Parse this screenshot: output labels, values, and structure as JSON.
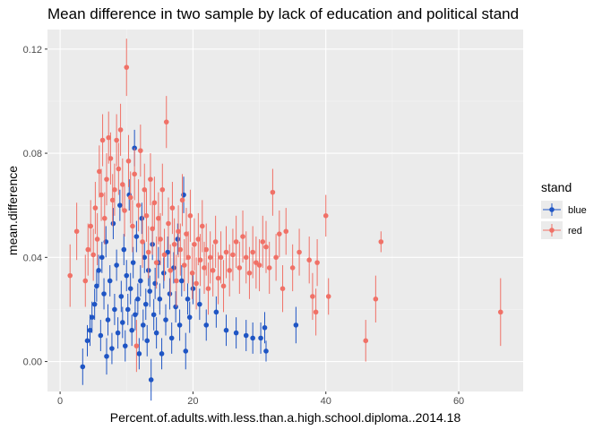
{
  "chart_data": {
    "type": "scatter",
    "title": "Mean difference in two sample by lack of education and political stand",
    "xlabel": "Percent.of.adults.with.less.than.a.high.school.diploma..2014.18",
    "ylabel": "mean.difference",
    "xlim": [
      -1.9,
      69.7
    ],
    "ylim": [
      -0.0115,
      0.1275
    ],
    "x_ticks": [
      0,
      20,
      40,
      60
    ],
    "x_tick_labels": [
      "0",
      "20",
      "40",
      "60"
    ],
    "y_ticks": [
      0.0,
      0.04,
      0.08,
      0.12
    ],
    "y_tick_labels": [
      "0.00",
      "0.04",
      "0.08",
      "0.12"
    ],
    "grid": true,
    "error_bars": true,
    "legend": {
      "title": "stand",
      "position": "right",
      "entries": [
        "blue",
        "red"
      ]
    },
    "colors": {
      "blue": "#1f55c4",
      "red": "#f07167"
    },
    "series": [
      {
        "name": "blue",
        "color": "#1f55c4",
        "points": [
          {
            "x": 3.4,
            "y": -0.002,
            "err": 0.007
          },
          {
            "x": 4.1,
            "y": 0.008,
            "err": 0.006
          },
          {
            "x": 4.5,
            "y": 0.012,
            "err": 0.006
          },
          {
            "x": 4.8,
            "y": 0.017,
            "err": 0.006
          },
          {
            "x": 5.2,
            "y": 0.022,
            "err": 0.006
          },
          {
            "x": 5.5,
            "y": 0.029,
            "err": 0.006
          },
          {
            "x": 5.8,
            "y": 0.035,
            "err": 0.006
          },
          {
            "x": 6.1,
            "y": 0.01,
            "err": 0.006
          },
          {
            "x": 6.3,
            "y": 0.04,
            "err": 0.006
          },
          {
            "x": 6.6,
            "y": 0.026,
            "err": 0.006
          },
          {
            "x": 6.9,
            "y": 0.046,
            "err": 0.006
          },
          {
            "x": 7.0,
            "y": 0.002,
            "err": 0.007
          },
          {
            "x": 7.2,
            "y": 0.016,
            "err": 0.006
          },
          {
            "x": 7.5,
            "y": 0.031,
            "err": 0.006
          },
          {
            "x": 7.8,
            "y": 0.005,
            "err": 0.006
          },
          {
            "x": 8.0,
            "y": 0.053,
            "err": 0.006
          },
          {
            "x": 8.2,
            "y": 0.02,
            "err": 0.006
          },
          {
            "x": 8.5,
            "y": 0.037,
            "err": 0.006
          },
          {
            "x": 8.7,
            "y": 0.011,
            "err": 0.006
          },
          {
            "x": 9.0,
            "y": 0.06,
            "err": 0.006
          },
          {
            "x": 9.2,
            "y": 0.025,
            "err": 0.006
          },
          {
            "x": 9.4,
            "y": 0.015,
            "err": 0.006
          },
          {
            "x": 9.6,
            "y": 0.043,
            "err": 0.006
          },
          {
            "x": 9.8,
            "y": 0.006,
            "err": 0.006
          },
          {
            "x": 10.0,
            "y": 0.033,
            "err": 0.006
          },
          {
            "x": 10.2,
            "y": 0.02,
            "err": 0.006
          },
          {
            "x": 10.4,
            "y": 0.064,
            "err": 0.006
          },
          {
            "x": 10.6,
            "y": 0.028,
            "err": 0.006
          },
          {
            "x": 10.8,
            "y": 0.012,
            "err": 0.006
          },
          {
            "x": 11.0,
            "y": 0.038,
            "err": 0.006
          },
          {
            "x": 11.2,
            "y": 0.082,
            "err": 0.007
          },
          {
            "x": 11.3,
            "y": 0.018,
            "err": 0.006
          },
          {
            "x": 11.5,
            "y": 0.048,
            "err": 0.006
          },
          {
            "x": 11.7,
            "y": 0.024,
            "err": 0.006
          },
          {
            "x": 11.9,
            "y": 0.003,
            "err": 0.006
          },
          {
            "x": 12.1,
            "y": 0.031,
            "err": 0.006
          },
          {
            "x": 12.3,
            "y": 0.055,
            "err": 0.006
          },
          {
            "x": 12.5,
            "y": 0.014,
            "err": 0.006
          },
          {
            "x": 12.7,
            "y": 0.04,
            "err": 0.006
          },
          {
            "x": 12.9,
            "y": 0.022,
            "err": 0.006
          },
          {
            "x": 13.1,
            "y": 0.008,
            "err": 0.006
          },
          {
            "x": 13.3,
            "y": 0.035,
            "err": 0.006
          },
          {
            "x": 13.5,
            "y": 0.027,
            "err": 0.006
          },
          {
            "x": 13.7,
            "y": -0.007,
            "err": 0.008
          },
          {
            "x": 13.9,
            "y": 0.045,
            "err": 0.006
          },
          {
            "x": 14.1,
            "y": 0.018,
            "err": 0.006
          },
          {
            "x": 14.3,
            "y": 0.03,
            "err": 0.006
          },
          {
            "x": 14.5,
            "y": 0.011,
            "err": 0.006
          },
          {
            "x": 14.8,
            "y": 0.038,
            "err": 0.006
          },
          {
            "x": 15.0,
            "y": 0.024,
            "err": 0.006
          },
          {
            "x": 15.3,
            "y": 0.003,
            "err": 0.006
          },
          {
            "x": 15.6,
            "y": 0.034,
            "err": 0.006
          },
          {
            "x": 15.9,
            "y": 0.016,
            "err": 0.006
          },
          {
            "x": 16.2,
            "y": 0.042,
            "err": 0.006
          },
          {
            "x": 16.5,
            "y": 0.026,
            "err": 0.006
          },
          {
            "x": 16.8,
            "y": 0.009,
            "err": 0.006
          },
          {
            "x": 17.1,
            "y": 0.036,
            "err": 0.006
          },
          {
            "x": 17.4,
            "y": 0.021,
            "err": 0.006
          },
          {
            "x": 17.7,
            "y": 0.047,
            "err": 0.006
          },
          {
            "x": 18.0,
            "y": 0.014,
            "err": 0.006
          },
          {
            "x": 18.3,
            "y": 0.031,
            "err": 0.006
          },
          {
            "x": 18.6,
            "y": 0.064,
            "err": 0.007
          },
          {
            "x": 18.9,
            "y": 0.004,
            "err": 0.007
          },
          {
            "x": 19.2,
            "y": 0.024,
            "err": 0.006
          },
          {
            "x": 19.5,
            "y": 0.017,
            "err": 0.006
          },
          {
            "x": 20.0,
            "y": 0.028,
            "err": 0.006
          },
          {
            "x": 21.0,
            "y": 0.022,
            "err": 0.006
          },
          {
            "x": 22.0,
            "y": 0.014,
            "err": 0.006
          },
          {
            "x": 23.5,
            "y": 0.019,
            "err": 0.006
          },
          {
            "x": 25.0,
            "y": 0.012,
            "err": 0.006
          },
          {
            "x": 26.5,
            "y": 0.011,
            "err": 0.006
          },
          {
            "x": 28.0,
            "y": 0.01,
            "err": 0.006
          },
          {
            "x": 29.0,
            "y": 0.009,
            "err": 0.006
          },
          {
            "x": 30.2,
            "y": 0.009,
            "err": 0.006
          },
          {
            "x": 30.8,
            "y": 0.013,
            "err": 0.006
          },
          {
            "x": 31.0,
            "y": 0.004,
            "err": 0.004
          },
          {
            "x": 35.5,
            "y": 0.014,
            "err": 0.007
          }
        ]
      },
      {
        "name": "red",
        "color": "#f07167",
        "points": [
          {
            "x": 1.5,
            "y": 0.033,
            "err": 0.012
          },
          {
            "x": 2.5,
            "y": 0.05,
            "err": 0.011
          },
          {
            "x": 3.8,
            "y": 0.031,
            "err": 0.01
          },
          {
            "x": 4.2,
            "y": 0.043,
            "err": 0.01
          },
          {
            "x": 4.6,
            "y": 0.052,
            "err": 0.01
          },
          {
            "x": 5.0,
            "y": 0.041,
            "err": 0.01
          },
          {
            "x": 5.3,
            "y": 0.059,
            "err": 0.01
          },
          {
            "x": 5.6,
            "y": 0.047,
            "err": 0.01
          },
          {
            "x": 5.9,
            "y": 0.073,
            "err": 0.01
          },
          {
            "x": 6.2,
            "y": 0.064,
            "err": 0.01
          },
          {
            "x": 6.4,
            "y": 0.085,
            "err": 0.01
          },
          {
            "x": 6.7,
            "y": 0.055,
            "err": 0.01
          },
          {
            "x": 7.0,
            "y": 0.07,
            "err": 0.01
          },
          {
            "x": 7.3,
            "y": 0.086,
            "err": 0.01
          },
          {
            "x": 7.6,
            "y": 0.078,
            "err": 0.01
          },
          {
            "x": 7.9,
            "y": 0.062,
            "err": 0.01
          },
          {
            "x": 8.2,
            "y": 0.066,
            "err": 0.01
          },
          {
            "x": 8.5,
            "y": 0.085,
            "err": 0.01
          },
          {
            "x": 8.8,
            "y": 0.074,
            "err": 0.01
          },
          {
            "x": 9.1,
            "y": 0.089,
            "err": 0.01
          },
          {
            "x": 9.4,
            "y": 0.068,
            "err": 0.01
          },
          {
            "x": 9.7,
            "y": 0.058,
            "err": 0.01
          },
          {
            "x": 10.0,
            "y": 0.113,
            "err": 0.011
          },
          {
            "x": 10.3,
            "y": 0.077,
            "err": 0.01
          },
          {
            "x": 10.6,
            "y": 0.063,
            "err": 0.01
          },
          {
            "x": 10.9,
            "y": 0.052,
            "err": 0.01
          },
          {
            "x": 11.2,
            "y": 0.072,
            "err": 0.01
          },
          {
            "x": 11.5,
            "y": 0.006,
            "err": 0.01
          },
          {
            "x": 11.8,
            "y": 0.06,
            "err": 0.01
          },
          {
            "x": 12.1,
            "y": 0.081,
            "err": 0.01
          },
          {
            "x": 12.4,
            "y": 0.046,
            "err": 0.01
          },
          {
            "x": 12.7,
            "y": 0.066,
            "err": 0.01
          },
          {
            "x": 13.0,
            "y": 0.056,
            "err": 0.01
          },
          {
            "x": 13.3,
            "y": 0.042,
            "err": 0.01
          },
          {
            "x": 13.6,
            "y": 0.07,
            "err": 0.01
          },
          {
            "x": 13.9,
            "y": 0.051,
            "err": 0.01
          },
          {
            "x": 14.2,
            "y": 0.061,
            "err": 0.01
          },
          {
            "x": 14.5,
            "y": 0.038,
            "err": 0.01
          },
          {
            "x": 14.8,
            "y": 0.055,
            "err": 0.01
          },
          {
            "x": 15.1,
            "y": 0.047,
            "err": 0.01
          },
          {
            "x": 15.4,
            "y": 0.066,
            "err": 0.01
          },
          {
            "x": 15.7,
            "y": 0.041,
            "err": 0.01
          },
          {
            "x": 16.0,
            "y": 0.092,
            "err": 0.01
          },
          {
            "x": 16.3,
            "y": 0.053,
            "err": 0.01
          },
          {
            "x": 16.6,
            "y": 0.035,
            "err": 0.01
          },
          {
            "x": 16.9,
            "y": 0.059,
            "err": 0.01
          },
          {
            "x": 17.2,
            "y": 0.045,
            "err": 0.01
          },
          {
            "x": 17.5,
            "y": 0.031,
            "err": 0.01
          },
          {
            "x": 17.8,
            "y": 0.05,
            "err": 0.01
          },
          {
            "x": 18.1,
            "y": 0.043,
            "err": 0.01
          },
          {
            "x": 18.4,
            "y": 0.062,
            "err": 0.01
          },
          {
            "x": 18.7,
            "y": 0.037,
            "err": 0.01
          },
          {
            "x": 19.0,
            "y": 0.049,
            "err": 0.01
          },
          {
            "x": 19.3,
            "y": 0.04,
            "err": 0.01
          },
          {
            "x": 19.6,
            "y": 0.056,
            "err": 0.01
          },
          {
            "x": 19.9,
            "y": 0.034,
            "err": 0.01
          },
          {
            "x": 20.2,
            "y": 0.045,
            "err": 0.01
          },
          {
            "x": 20.5,
            "y": 0.03,
            "err": 0.01
          },
          {
            "x": 20.8,
            "y": 0.047,
            "err": 0.01
          },
          {
            "x": 21.1,
            "y": 0.039,
            "err": 0.01
          },
          {
            "x": 21.4,
            "y": 0.052,
            "err": 0.01
          },
          {
            "x": 21.7,
            "y": 0.036,
            "err": 0.01
          },
          {
            "x": 22.0,
            "y": 0.043,
            "err": 0.01
          },
          {
            "x": 22.3,
            "y": 0.028,
            "err": 0.01
          },
          {
            "x": 22.6,
            "y": 0.04,
            "err": 0.01
          },
          {
            "x": 23.0,
            "y": 0.035,
            "err": 0.01
          },
          {
            "x": 23.4,
            "y": 0.046,
            "err": 0.01
          },
          {
            "x": 23.8,
            "y": 0.032,
            "err": 0.01
          },
          {
            "x": 24.2,
            "y": 0.04,
            "err": 0.01
          },
          {
            "x": 24.6,
            "y": 0.029,
            "err": 0.01
          },
          {
            "x": 25.0,
            "y": 0.042,
            "err": 0.01
          },
          {
            "x": 25.5,
            "y": 0.035,
            "err": 0.01
          },
          {
            "x": 26.0,
            "y": 0.041,
            "err": 0.01
          },
          {
            "x": 26.5,
            "y": 0.046,
            "err": 0.01
          },
          {
            "x": 27.0,
            "y": 0.036,
            "err": 0.01
          },
          {
            "x": 27.5,
            "y": 0.048,
            "err": 0.01
          },
          {
            "x": 28.0,
            "y": 0.04,
            "err": 0.01
          },
          {
            "x": 28.5,
            "y": 0.034,
            "err": 0.01
          },
          {
            "x": 29.0,
            "y": 0.042,
            "err": 0.01
          },
          {
            "x": 29.5,
            "y": 0.038,
            "err": 0.01
          },
          {
            "x": 30.0,
            "y": 0.037,
            "err": 0.01
          },
          {
            "x": 30.5,
            "y": 0.046,
            "err": 0.01
          },
          {
            "x": 31.0,
            "y": 0.044,
            "err": 0.01
          },
          {
            "x": 31.5,
            "y": 0.036,
            "err": 0.01
          },
          {
            "x": 32.0,
            "y": 0.065,
            "err": 0.009
          },
          {
            "x": 32.5,
            "y": 0.04,
            "err": 0.009
          },
          {
            "x": 33.0,
            "y": 0.049,
            "err": 0.009
          },
          {
            "x": 33.5,
            "y": 0.028,
            "err": 0.009
          },
          {
            "x": 34.0,
            "y": 0.05,
            "err": 0.009
          },
          {
            "x": 35.0,
            "y": 0.036,
            "err": 0.009
          },
          {
            "x": 36.0,
            "y": 0.042,
            "err": 0.009
          },
          {
            "x": 37.5,
            "y": 0.039,
            "err": 0.009
          },
          {
            "x": 38.0,
            "y": 0.025,
            "err": 0.009
          },
          {
            "x": 38.5,
            "y": 0.019,
            "err": 0.009
          },
          {
            "x": 38.7,
            "y": 0.038,
            "err": 0.009
          },
          {
            "x": 40.0,
            "y": 0.056,
            "err": 0.008
          },
          {
            "x": 40.4,
            "y": 0.025,
            "err": 0.007
          },
          {
            "x": 46.0,
            "y": 0.008,
            "err": 0.008
          },
          {
            "x": 47.5,
            "y": 0.024,
            "err": 0.009
          },
          {
            "x": 48.3,
            "y": 0.046,
            "err": 0.004
          },
          {
            "x": 66.3,
            "y": 0.019,
            "err": 0.013
          }
        ]
      }
    ]
  }
}
